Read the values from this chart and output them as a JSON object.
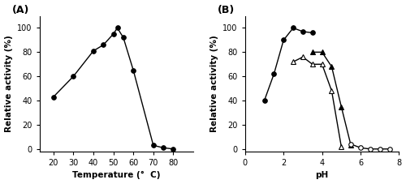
{
  "panel_A": {
    "temp": [
      20,
      30,
      40,
      45,
      50,
      52,
      55,
      60,
      70,
      75,
      80
    ],
    "activity": [
      43,
      60,
      81,
      86,
      95,
      100,
      92,
      65,
      3,
      1,
      0
    ],
    "xlabel": "Temperature (°  C)",
    "ylabel": "Relative activity (%)",
    "xlim": [
      13,
      90
    ],
    "ylim": [
      -2,
      110
    ],
    "xticks": [
      20,
      30,
      40,
      50,
      60,
      70,
      80
    ],
    "yticks": [
      0,
      20,
      40,
      60,
      80,
      100
    ],
    "label": "(A)"
  },
  "panel_B": {
    "closed_circle": {
      "ph": [
        1.0,
        1.5,
        2.0,
        2.5,
        3.0,
        3.5
      ],
      "activity": [
        40,
        62,
        90,
        100,
        97,
        96
      ]
    },
    "open_triangle": {
      "ph": [
        2.5,
        3.0,
        3.5,
        4.0,
        4.5,
        5.0
      ],
      "activity": [
        72,
        76,
        70,
        70,
        48,
        2
      ]
    },
    "closed_triangle": {
      "ph": [
        3.5,
        4.0,
        4.5,
        5.0,
        5.5
      ],
      "activity": [
        80,
        80,
        68,
        35,
        3
      ]
    },
    "open_circle": {
      "ph": [
        5.5,
        6.0,
        6.5,
        7.0,
        7.5
      ],
      "activity": [
        4,
        1,
        0,
        0,
        0
      ]
    },
    "xlabel": "pH",
    "ylabel": "Relative activity (%)",
    "xlim": [
      0,
      8
    ],
    "ylim": [
      -2,
      110
    ],
    "xticks": [
      0,
      2,
      4,
      6,
      8
    ],
    "yticks": [
      0,
      20,
      40,
      60,
      80,
      100
    ],
    "label": "(B)"
  },
  "line_color": "#000000",
  "marker_size": 4,
  "line_width": 1.0,
  "label_fontsize": 9,
  "axis_fontsize": 7.5,
  "tick_fontsize": 7
}
